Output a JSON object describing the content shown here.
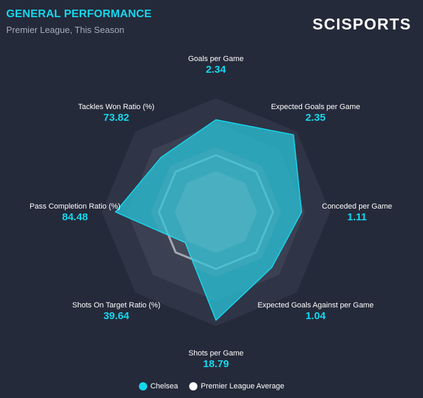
{
  "header": {
    "title": "GENERAL PERFORMANCE",
    "subtitle": "Premier League, This Season",
    "brand": "SCISPORTS"
  },
  "colors": {
    "accent": "#14d8ee",
    "team_fill": "#29bfd3",
    "average": "#ffffff",
    "ring_outer": "#2f3446",
    "ring_inner": "#3b4052"
  },
  "legend": [
    {
      "name": "Chelsea",
      "color": "#14d8ee"
    },
    {
      "name": "Premier League Average",
      "color": "#ffffff"
    }
  ],
  "chart_data": {
    "type": "radar",
    "axes": [
      {
        "name": "Goals per Game",
        "value": "2.34"
      },
      {
        "name": "Expected Goals per Game",
        "value": "2.35"
      },
      {
        "name": "Conceded per Game",
        "value": "1.11"
      },
      {
        "name": "Expected Goals Against per Game",
        "value": "1.04"
      },
      {
        "name": "Shots per Game",
        "value": "18.79"
      },
      {
        "name": "Shots On Target Ratio (%)",
        "value": "39.64"
      },
      {
        "name": "Pass Completion Ratio (%)",
        "value": "84.48"
      },
      {
        "name": "Tackles Won Ratio (%)",
        "value": "73.82"
      }
    ],
    "range": [
      0,
      1
    ],
    "series": [
      {
        "name": "Chelsea",
        "values": [
          0.81,
          0.96,
          0.75,
          0.69,
          0.95,
          0.38,
          0.88,
          0.68
        ]
      },
      {
        "name": "Premier League Average",
        "values": [
          0.5,
          0.5,
          0.5,
          0.5,
          0.5,
          0.5,
          0.5,
          0.5
        ]
      }
    ]
  }
}
